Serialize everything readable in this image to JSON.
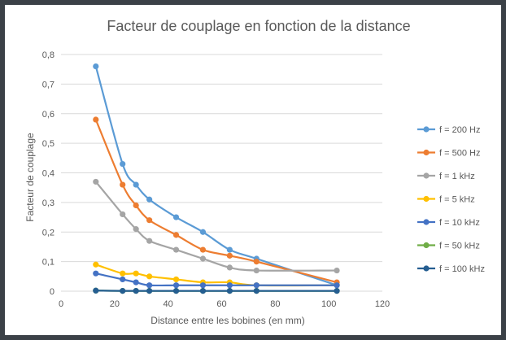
{
  "chart_data": {
    "type": "line",
    "title": "Facteur de couplage en fonction de la distance",
    "xlabel": "Distance entre les bobines (en mm)",
    "ylabel": "Facteur de couplage",
    "xlim": [
      0,
      120
    ],
    "ylim": [
      0,
      0.8
    ],
    "x_ticks": [
      "0",
      "20",
      "40",
      "60",
      "80",
      "100",
      "120"
    ],
    "y_ticks": [
      "0",
      "0,1",
      "0,2",
      "0,3",
      "0,4",
      "0,5",
      "0,6",
      "0,7",
      "0,8"
    ],
    "grid": "horizontal",
    "legend_position": "right",
    "series": [
      {
        "name": "f = 200 Hz",
        "color": "#5b9bd5",
        "x": [
          13,
          23,
          28,
          33,
          43,
          53,
          63,
          73,
          103
        ],
        "y": [
          0.76,
          0.43,
          0.36,
          0.31,
          0.25,
          0.2,
          0.14,
          0.11,
          0.02
        ]
      },
      {
        "name": "f = 500 Hz",
        "color": "#ed7d31",
        "x": [
          13,
          23,
          28,
          33,
          43,
          53,
          63,
          73,
          103
        ],
        "y": [
          0.58,
          0.36,
          0.29,
          0.24,
          0.19,
          0.14,
          0.12,
          0.1,
          0.03
        ]
      },
      {
        "name": "f = 1 kHz",
        "color": "#a5a5a5",
        "x": [
          13,
          23,
          28,
          33,
          43,
          53,
          63,
          73,
          103
        ],
        "y": [
          0.37,
          0.26,
          0.21,
          0.17,
          0.14,
          0.11,
          0.08,
          0.07,
          0.07
        ]
      },
      {
        "name": "f = 5 kHz",
        "color": "#ffc000",
        "x": [
          13,
          23,
          28,
          33,
          43,
          53,
          63,
          73,
          103
        ],
        "y": [
          0.09,
          0.06,
          0.06,
          0.05,
          0.04,
          0.03,
          0.03,
          0.02,
          0.02
        ]
      },
      {
        "name": "f = 10 kHz",
        "color": "#4472c4",
        "x": [
          13,
          23,
          28,
          33,
          43,
          53,
          63,
          73,
          103
        ],
        "y": [
          0.06,
          0.04,
          0.03,
          0.02,
          0.02,
          0.02,
          0.02,
          0.02,
          0.02
        ]
      },
      {
        "name": "f = 50 kHz",
        "color": "#70ad47",
        "x": [
          13,
          23,
          28,
          33,
          43,
          53,
          63,
          73,
          103
        ],
        "y": [
          0.002,
          0.001,
          0.001,
          0.001,
          0.001,
          0.001,
          0.001,
          0.001,
          0.001
        ]
      },
      {
        "name": "f = 100 kHz",
        "color": "#255e91",
        "x": [
          13,
          23,
          28,
          33,
          43,
          53,
          63,
          73,
          103
        ],
        "y": [
          0.002,
          0.001,
          0.001,
          0.001,
          0.001,
          0.001,
          0.001,
          0.001,
          0.001
        ]
      }
    ]
  }
}
